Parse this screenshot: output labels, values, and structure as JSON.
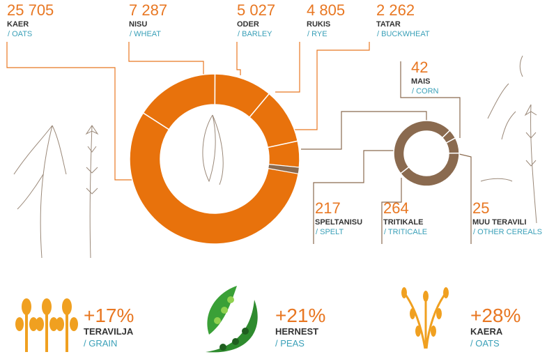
{
  "chart_data": [
    {
      "type": "donut",
      "categories": [
        "KAER",
        "NISU",
        "ODER",
        "RUKIS",
        "TATAR"
      ],
      "labels_en": [
        "/ OATS",
        "/ WHEAT",
        "/ BARLEY",
        "/ RYE",
        "/ BUCKWHEAT"
      ],
      "values": [
        25705,
        7287,
        5027,
        4805,
        2262
      ],
      "value_labels": [
        "25 705",
        "7 287",
        "5 027",
        "4 805",
        "2 262"
      ],
      "color": "#e8720c",
      "other_color": "#8a6a4f"
    },
    {
      "type": "donut",
      "categories": [
        "MAIS",
        "SPELTANISU",
        "TRITIKALE",
        "MUU TERAVILI"
      ],
      "labels_en": [
        "/ CORN",
        "/ SPELT",
        "/ TRITICALE",
        "/ OTHER CEREALS"
      ],
      "values": [
        42,
        217,
        264,
        25
      ],
      "color": "#8a6a4f"
    }
  ],
  "stats": [
    {
      "label": "+17%",
      "name": "TERAVILJA",
      "name_en": "/ GRAIN"
    },
    {
      "label": "+21%",
      "name": "HERNEST",
      "name_en": "/ PEAS"
    },
    {
      "label": "+28%",
      "name": "KAERA",
      "name_en": "/ OATS"
    }
  ]
}
